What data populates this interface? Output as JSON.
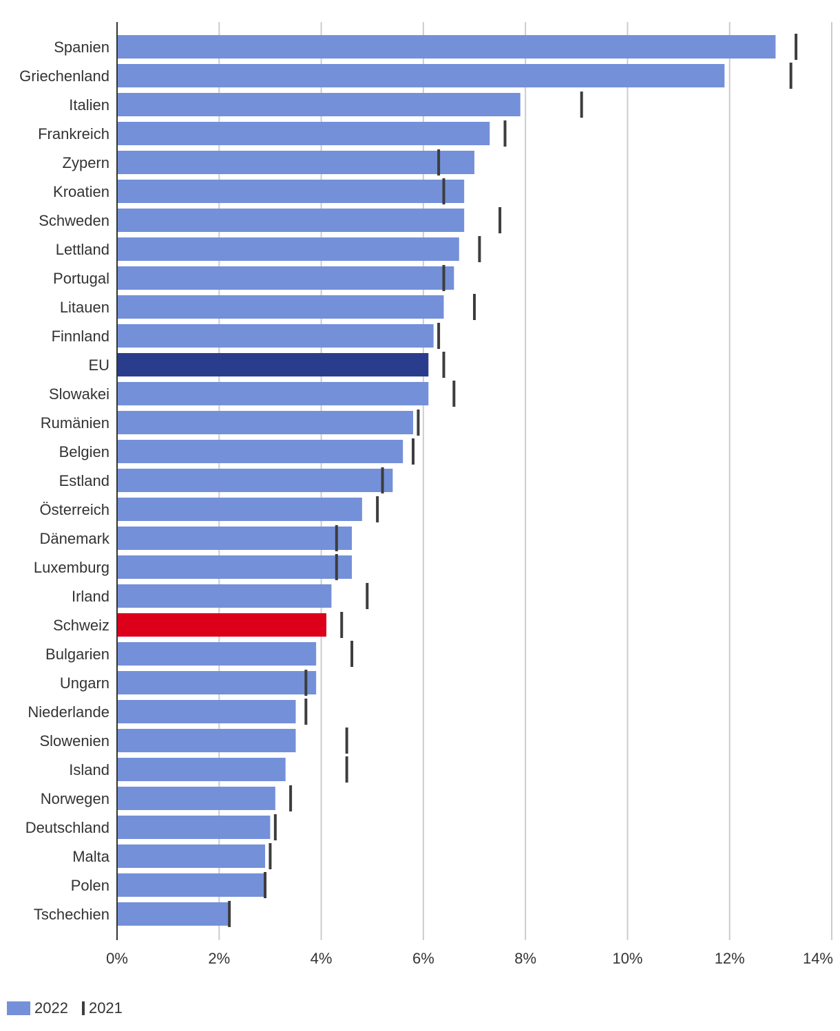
{
  "chart_data": {
    "type": "bar",
    "orientation": "horizontal",
    "title": "",
    "xlabel": "",
    "ylabel": "",
    "xlim": [
      0,
      14
    ],
    "x_ticks": [
      0,
      2,
      4,
      6,
      8,
      10,
      12,
      14
    ],
    "tick_labels": [
      "0%",
      "2%",
      "4%",
      "6%",
      "8%",
      "10%",
      "12%",
      "14%"
    ],
    "grid": true,
    "legend_position": "bottom-left",
    "categories": [
      "Spanien",
      "Griechenland",
      "Italien",
      "Frankreich",
      "Zypern",
      "Kroatien",
      "Schweden",
      "Lettland",
      "Portugal",
      "Litauen",
      "Finnland",
      "EU",
      "Slowakei",
      "Rumänien",
      "Belgien",
      "Estland",
      "Österreich",
      "Dänemark",
      "Luxemburg",
      "Irland",
      "Schweiz",
      "Bulgarien",
      "Ungarn",
      "Niederlande",
      "Slowenien",
      "Island",
      "Norwegen",
      "Deutschland",
      "Malta",
      "Polen",
      "Tschechien"
    ],
    "series": [
      {
        "name": "2022",
        "style": "bar",
        "values": [
          12.9,
          11.9,
          7.9,
          7.3,
          7.0,
          6.8,
          6.8,
          6.7,
          6.6,
          6.4,
          6.2,
          6.1,
          6.1,
          5.8,
          5.6,
          5.4,
          4.8,
          4.6,
          4.6,
          4.2,
          4.1,
          3.9,
          3.9,
          3.5,
          3.5,
          3.3,
          3.1,
          3.0,
          2.9,
          2.9,
          2.2
        ]
      },
      {
        "name": "2021",
        "style": "marker",
        "values": [
          13.3,
          13.2,
          9.1,
          7.6,
          6.3,
          6.4,
          7.5,
          7.1,
          6.4,
          7.0,
          6.3,
          6.4,
          6.6,
          5.9,
          5.8,
          5.2,
          5.1,
          4.3,
          4.3,
          4.9,
          4.4,
          4.6,
          3.7,
          3.7,
          4.5,
          4.5,
          3.4,
          3.1,
          3.0,
          2.9,
          2.2
        ]
      }
    ],
    "highlight": {
      "EU": "#2a3d8d",
      "Schweiz": "#dc001b"
    }
  },
  "colors": {
    "bar": "#7490d9",
    "marker": "#3d3d3d",
    "grid": "#cccccc",
    "axis": "#333333"
  },
  "legend": {
    "label_2022": "2022",
    "label_2021": "2021"
  }
}
